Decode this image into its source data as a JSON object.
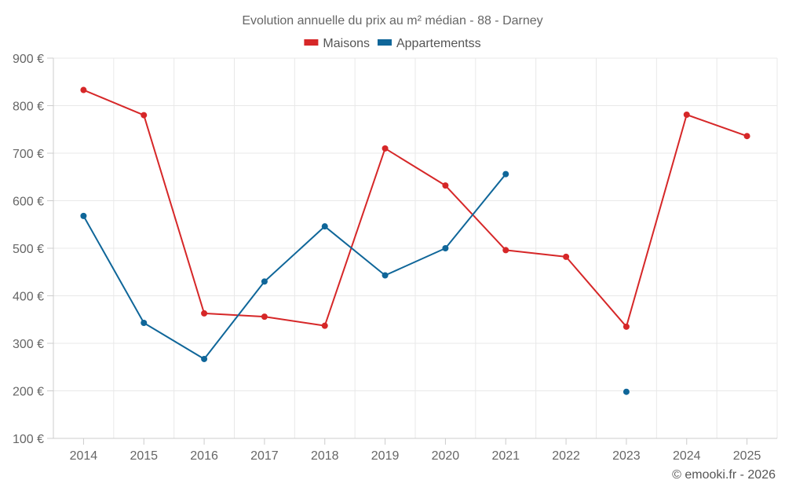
{
  "chart_data": {
    "type": "line",
    "title": "Evolution annuelle du prix au m² médian - 88 - Darney",
    "categories": [
      "2014",
      "2015",
      "2016",
      "2017",
      "2018",
      "2019",
      "2020",
      "2021",
      "2022",
      "2023",
      "2024",
      "2025"
    ],
    "ylim": [
      100,
      900
    ],
    "yticks": [
      100,
      200,
      300,
      400,
      500,
      600,
      700,
      800,
      900
    ],
    "y_tick_suffix": " €",
    "grid": true,
    "legend_position": "top-center",
    "series": [
      {
        "name": "Maisons",
        "color": "#d62728",
        "values": [
          833,
          780,
          363,
          356,
          337,
          710,
          632,
          496,
          482,
          335,
          781,
          736
        ]
      },
      {
        "name": "Appartementss",
        "color": "#0f6699",
        "values": [
          568,
          343,
          267,
          430,
          546,
          443,
          500,
          656,
          null,
          198,
          null,
          null
        ]
      }
    ]
  },
  "credit": "© emooki.fr - 2026"
}
